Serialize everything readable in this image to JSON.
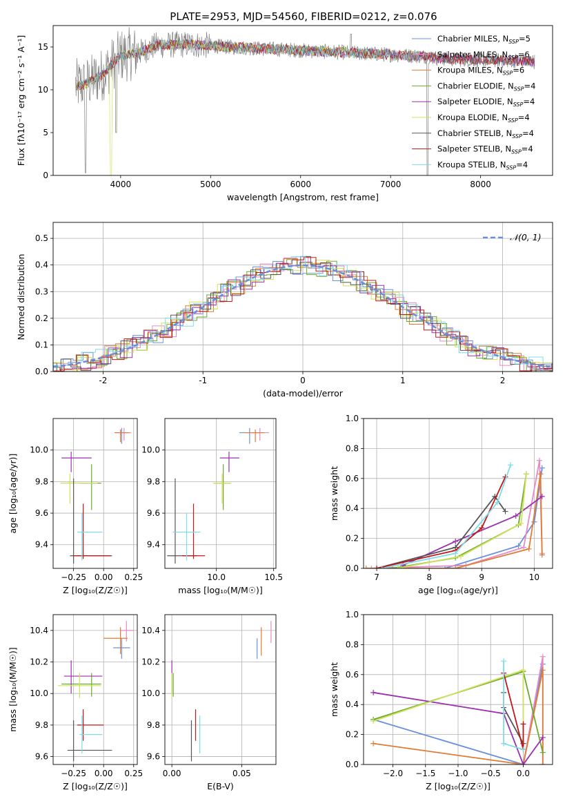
{
  "figure_title": "PLATE=2953, MJD=54560, FIBERID=0212, z=0.076",
  "legend_spectrum": [
    {
      "label": "Chabrier MILES, N",
      "sub": "SSP",
      "tail": "=5",
      "color": "#6b8fde"
    },
    {
      "label": "Salpeter MILES, N",
      "sub": "SSP",
      "tail": "=6",
      "color": "#e58ac4"
    },
    {
      "label": "Kroupa MILES, N",
      "sub": "SSP",
      "tail": "=6",
      "color": "#e07b34"
    },
    {
      "label": "Chabrier ELODIE, N",
      "sub": "SSP",
      "tail": "=4",
      "color": "#6aaa2a"
    },
    {
      "label": "Salpeter ELODIE, N",
      "sub": "SSP",
      "tail": "=4",
      "color": "#9a2fb0"
    },
    {
      "label": "Kroupa ELODIE, N",
      "sub": "SSP",
      "tail": "=4",
      "color": "#cfe05a"
    },
    {
      "label": "Chabrier STELIB, N",
      "sub": "SSP",
      "tail": "=4",
      "color": "#555555"
    },
    {
      "label": "Salpeter STELIB, N",
      "sub": "SSP",
      "tail": "=4",
      "color": "#c0161a"
    },
    {
      "label": "Kroupa STELIB, N",
      "sub": "SSP",
      "tail": "=4",
      "color": "#7fdbe6"
    }
  ],
  "legend_normal": "𝒩(0, 1)",
  "chart_data": [
    {
      "type": "line",
      "xlabel": "wavelength [Angstrom, rest frame]",
      "ylabel": "Flux [fλ10⁻¹⁷ erg cm⁻² s⁻¹ A⁻¹]",
      "xlim": [
        3250,
        8800
      ],
      "ylim": [
        0,
        17.5
      ],
      "xticks": [
        4000,
        5000,
        6000,
        7000,
        8000
      ],
      "yticks": [
        0,
        5,
        10,
        15
      ],
      "data_color": "#808080",
      "continuum": {
        "x": [
          3500,
          3600,
          3800,
          4000,
          4200,
          4400,
          4800,
          5200,
          5600,
          6000,
          6400,
          6800,
          7200,
          7400,
          7600,
          8000,
          8400,
          8600
        ],
        "y": [
          10.5,
          10.6,
          11.8,
          14.0,
          14.3,
          15.2,
          15.3,
          15.0,
          14.8,
          14.6,
          14.4,
          14.2,
          14.0,
          13.9,
          13.6,
          13.5,
          13.4,
          13.3
        ]
      }
    },
    {
      "type": "line",
      "xlabel": "(data-model)/error",
      "ylabel": "Normed distribution",
      "xlim": [
        -2.5,
        2.5
      ],
      "ylim": [
        0,
        0.56
      ],
      "xticks": [
        -2,
        -1,
        0,
        1,
        2
      ],
      "yticks": [
        0.0,
        0.1,
        0.2,
        0.3,
        0.4,
        0.5
      ],
      "normal_color": "#6a8fd8"
    },
    {
      "type": "scatter",
      "xlabel": "Z [log₁₀(Z/Z☉)]",
      "ylabel": "age  [log₁₀(age/yr)]",
      "xlim": [
        -0.42,
        0.28
      ],
      "ylim": [
        9.25,
        10.2
      ],
      "xticks": [
        -0.25,
        0.0,
        0.25
      ],
      "xtick_labels": [
        "−0.25",
        "0.00",
        "0.25"
      ],
      "yticks": [
        9.4,
        9.6,
        9.8,
        10.0
      ],
      "points": [
        {
          "x": 0.15,
          "xl": 0.1,
          "xh": 0.22,
          "y": 10.11,
          "yl": 10.04,
          "yh": 10.14,
          "color": "#6b8fde"
        },
        {
          "x": 0.17,
          "xl": 0.12,
          "xh": 0.23,
          "y": 10.11,
          "yl": 10.06,
          "yh": 10.14,
          "color": "#e58ac4"
        },
        {
          "x": 0.14,
          "xl": 0.09,
          "xh": 0.21,
          "y": 10.11,
          "yl": 10.05,
          "yh": 10.13,
          "color": "#e07b34"
        },
        {
          "x": -0.1,
          "xl": -0.2,
          "xh": -0.02,
          "y": 9.79,
          "yl": 9.62,
          "yh": 9.91,
          "color": "#6aaa2a"
        },
        {
          "x": -0.27,
          "xl": -0.35,
          "xh": -0.1,
          "y": 9.95,
          "yl": 9.86,
          "yh": 9.99,
          "color": "#9a2fb0"
        },
        {
          "x": -0.28,
          "xl": -0.36,
          "xh": -0.05,
          "y": 9.79,
          "yl": 9.66,
          "yh": 9.85,
          "color": "#cfe05a"
        },
        {
          "x": -0.25,
          "xl": -0.28,
          "xh": 0.07,
          "y": 9.33,
          "yl": 9.28,
          "yh": 9.82,
          "color": "#555555"
        },
        {
          "x": -0.17,
          "xl": -0.25,
          "xh": 0.06,
          "y": 9.33,
          "yl": 9.31,
          "yh": 9.66,
          "color": "#c0161a"
        },
        {
          "x": -0.18,
          "xl": -0.22,
          "xh": -0.01,
          "y": 9.48,
          "yl": 9.3,
          "yh": 9.6,
          "color": "#7fdbe6"
        }
      ]
    },
    {
      "type": "scatter",
      "xlabel": "mass [log₁₀(M/M☉)]",
      "ylabel": "",
      "xlim": [
        9.55,
        10.52
      ],
      "ylim": [
        9.25,
        10.2
      ],
      "xticks": [
        10.0,
        10.5
      ],
      "xtick_labels": [
        "10.0",
        "10.5"
      ],
      "yticks": [
        9.4,
        9.6,
        9.8,
        10.0
      ],
      "points": [
        {
          "x": 10.29,
          "xl": 10.2,
          "xh": 10.38,
          "y": 10.11,
          "yl": 10.04,
          "yh": 10.14,
          "color": "#6b8fde"
        },
        {
          "x": 10.38,
          "xl": 10.3,
          "xh": 10.46,
          "y": 10.11,
          "yl": 10.06,
          "yh": 10.14,
          "color": "#e58ac4"
        },
        {
          "x": 10.34,
          "xl": 10.25,
          "xh": 10.42,
          "y": 10.11,
          "yl": 10.05,
          "yh": 10.13,
          "color": "#e07b34"
        },
        {
          "x": 10.06,
          "xl": 9.98,
          "xh": 10.12,
          "y": 9.79,
          "yl": 9.62,
          "yh": 9.91,
          "color": "#6aaa2a"
        },
        {
          "x": 10.11,
          "xl": 10.03,
          "xh": 10.2,
          "y": 9.95,
          "yl": 9.86,
          "yh": 9.99,
          "color": "#9a2fb0"
        },
        {
          "x": 10.05,
          "xl": 9.97,
          "xh": 10.13,
          "y": 9.79,
          "yl": 9.66,
          "yh": 9.85,
          "color": "#cfe05a"
        },
        {
          "x": 9.64,
          "xl": 9.57,
          "xh": 9.83,
          "y": 9.33,
          "yl": 9.28,
          "yh": 9.82,
          "color": "#555555"
        },
        {
          "x": 9.8,
          "xl": 9.7,
          "xh": 9.9,
          "y": 9.33,
          "yl": 9.31,
          "yh": 9.66,
          "color": "#c0161a"
        },
        {
          "x": 9.74,
          "xl": 9.62,
          "xh": 9.86,
          "y": 9.48,
          "yl": 9.3,
          "yh": 9.6,
          "color": "#7fdbe6"
        }
      ]
    },
    {
      "type": "line",
      "xlabel": "age  [log₁₀(age/yr)]",
      "ylabel": "mass weight",
      "xlim": [
        6.75,
        10.35
      ],
      "ylim": [
        0,
        1.0
      ],
      "xticks": [
        7,
        8,
        9,
        10
      ],
      "yticks": [
        0.0,
        0.2,
        0.4,
        0.6,
        0.8,
        1.0
      ],
      "series": [
        {
          "color": "#6b8fde",
          "x": [
            8.3,
            9.7,
            10.0,
            10.15
          ],
          "y": [
            0.0,
            0.15,
            0.31,
            0.67
          ]
        },
        {
          "color": "#e58ac4",
          "x": [
            6.9,
            8.7,
            9.8,
            10.1,
            10.15
          ],
          "y": [
            0.0,
            0.02,
            0.14,
            0.72,
            0.1
          ]
        },
        {
          "color": "#e07b34",
          "x": [
            6.8,
            8.5,
            9.9,
            10.12,
            10.15
          ],
          "y": [
            0.0,
            0.0,
            0.13,
            0.63,
            0.09
          ]
        },
        {
          "color": "#6aaa2a",
          "x": [
            7.3,
            8.5,
            9.7,
            9.85
          ],
          "y": [
            0.0,
            0.07,
            0.29,
            0.63
          ]
        },
        {
          "color": "#9a2fb0",
          "x": [
            7.5,
            8.5,
            9.65,
            10.15
          ],
          "y": [
            0.02,
            0.18,
            0.35,
            0.48
          ]
        },
        {
          "color": "#cfe05a",
          "x": [
            7.4,
            8.6,
            9.75,
            9.85
          ],
          "y": [
            0.0,
            0.08,
            0.3,
            0.63
          ]
        },
        {
          "color": "#555555",
          "x": [
            7.0,
            8.5,
            9.25,
            9.45
          ],
          "y": [
            0.0,
            0.14,
            0.48,
            0.38
          ]
        },
        {
          "color": "#c0161a",
          "x": [
            7.0,
            8.5,
            9.0,
            9.45
          ],
          "y": [
            0.0,
            0.12,
            0.27,
            0.61
          ]
        },
        {
          "color": "#7fdbe6",
          "x": [
            7.1,
            8.5,
            9.3,
            9.55
          ],
          "y": [
            0.0,
            0.1,
            0.44,
            0.69
          ]
        }
      ]
    },
    {
      "type": "scatter",
      "xlabel": "Z [log₁₀(Z/Z☉)]",
      "ylabel": "mass [log₁₀(M/M☉)]",
      "xlim": [
        -0.42,
        0.28
      ],
      "ylim": [
        9.55,
        10.5
      ],
      "xticks": [
        -0.25,
        0.0,
        0.25
      ],
      "xtick_labels": [
        "−0.25",
        "0.00",
        "0.25"
      ],
      "yticks": [
        9.6,
        9.8,
        10.0,
        10.2,
        10.4
      ],
      "points": [
        {
          "x": 0.15,
          "xl": 0.08,
          "xh": 0.22,
          "y": 10.29,
          "yl": 10.22,
          "yh": 10.35,
          "color": "#6b8fde"
        },
        {
          "x": 0.19,
          "xl": 0.14,
          "xh": 0.25,
          "y": 10.4,
          "yl": 10.33,
          "yh": 10.46,
          "color": "#e58ac4"
        },
        {
          "x": 0.14,
          "xl": 0.0,
          "xh": 0.2,
          "y": 10.35,
          "yl": 10.25,
          "yh": 10.42,
          "color": "#e07b34"
        },
        {
          "x": -0.1,
          "xl": -0.35,
          "xh": -0.02,
          "y": 10.06,
          "yl": 9.98,
          "yh": 10.13,
          "color": "#6aaa2a"
        },
        {
          "x": -0.27,
          "xl": -0.33,
          "xh": -0.01,
          "y": 10.11,
          "yl": 10.0,
          "yh": 10.21,
          "color": "#9a2fb0"
        },
        {
          "x": -0.2,
          "xl": -0.38,
          "xh": -0.02,
          "y": 10.05,
          "yl": 9.97,
          "yh": 10.13,
          "color": "#cfe05a"
        },
        {
          "x": -0.25,
          "xl": -0.3,
          "xh": 0.07,
          "y": 9.64,
          "yl": 9.57,
          "yh": 9.83,
          "color": "#555555"
        },
        {
          "x": -0.17,
          "xl": -0.22,
          "xh": 0.0,
          "y": 9.8,
          "yl": 9.7,
          "yh": 9.9,
          "color": "#c0161a"
        },
        {
          "x": -0.18,
          "xl": -0.2,
          "xh": -0.01,
          "y": 9.74,
          "yl": 9.62,
          "yh": 9.86,
          "color": "#7fdbe6"
        }
      ]
    },
    {
      "type": "scatter",
      "xlabel": "E(B-V)",
      "ylabel": "",
      "xlim": [
        -0.005,
        0.0745
      ],
      "ylim": [
        9.55,
        10.5
      ],
      "xticks": [
        0.0,
        0.05
      ],
      "xtick_labels": [
        "0.00",
        "0.05"
      ],
      "yticks": [
        9.6,
        9.8,
        10.0,
        10.2,
        10.4
      ],
      "points": [
        {
          "x": 0.061,
          "y": 10.29,
          "yl": 10.22,
          "yh": 10.35,
          "color": "#6b8fde"
        },
        {
          "x": 0.071,
          "y": 10.4,
          "yl": 10.32,
          "yh": 10.46,
          "color": "#e58ac4"
        },
        {
          "x": 0.064,
          "y": 10.35,
          "yl": 10.24,
          "yh": 10.42,
          "color": "#e07b34"
        },
        {
          "x": 0.001,
          "y": 10.06,
          "yl": 9.98,
          "yh": 10.13,
          "color": "#6aaa2a"
        },
        {
          "x": 0.0,
          "y": 10.11,
          "yl": 10.0,
          "yh": 10.21,
          "color": "#9a2fb0"
        },
        {
          "x": 0.0,
          "y": 10.05,
          "yl": 9.97,
          "yh": 10.13,
          "color": "#cfe05a"
        },
        {
          "x": 0.014,
          "y": 9.64,
          "yl": 9.57,
          "yh": 9.83,
          "color": "#555555"
        },
        {
          "x": 0.017,
          "y": 9.8,
          "yl": 9.7,
          "yh": 9.9,
          "color": "#c0161a"
        },
        {
          "x": 0.02,
          "y": 9.74,
          "yl": 9.62,
          "yh": 9.86,
          "color": "#7fdbe6"
        }
      ]
    },
    {
      "type": "line",
      "xlabel": "Z [log₁₀(Z/Z☉)]",
      "ylabel": "mass weight",
      "xlim": [
        -2.45,
        0.45
      ],
      "ylim": [
        0,
        1.0
      ],
      "xticks": [
        -2.0,
        -1.5,
        -1.0,
        -0.5,
        0.0
      ],
      "xtick_labels": [
        "−2.0",
        "−1.5",
        "−1.0",
        "−0.5",
        "0.0"
      ],
      "yticks": [
        0.0,
        0.2,
        0.4,
        0.6,
        0.8,
        1.0
      ],
      "series": [
        {
          "color": "#6b8fde",
          "x": [
            -2.3,
            0.0,
            0.3
          ],
          "y": [
            0.3,
            0.0,
            0.67
          ]
        },
        {
          "color": "#e58ac4",
          "x": [
            0.0,
            0.3,
            0.3
          ],
          "y": [
            0.0,
            0.72,
            0.0
          ]
        },
        {
          "color": "#e07b34",
          "x": [
            -2.3,
            0.0,
            0.3,
            0.3
          ],
          "y": [
            0.14,
            0.0,
            0.63,
            0.0
          ]
        },
        {
          "color": "#6aaa2a",
          "x": [
            -2.3,
            0.0,
            0.3
          ],
          "y": [
            0.3,
            0.62,
            0.08
          ]
        },
        {
          "color": "#9a2fb0",
          "x": [
            -2.3,
            -0.3,
            0.0,
            0.3
          ],
          "y": [
            0.48,
            0.34,
            0.0,
            0.18
          ]
        },
        {
          "color": "#cfe05a",
          "x": [
            -2.3,
            0.0,
            0.0
          ],
          "y": [
            0.29,
            0.63,
            0.1
          ]
        },
        {
          "color": "#555555",
          "x": [
            -0.3,
            -0.3,
            0.0
          ],
          "y": [
            0.48,
            0.38,
            0.14
          ]
        },
        {
          "color": "#c0161a",
          "x": [
            -0.3,
            0.0,
            0.0
          ],
          "y": [
            0.61,
            0.1,
            0.27
          ]
        },
        {
          "color": "#7fdbe6",
          "x": [
            -0.3,
            -0.3,
            0.0
          ],
          "y": [
            0.69,
            0.14,
            0.1
          ]
        }
      ]
    }
  ]
}
